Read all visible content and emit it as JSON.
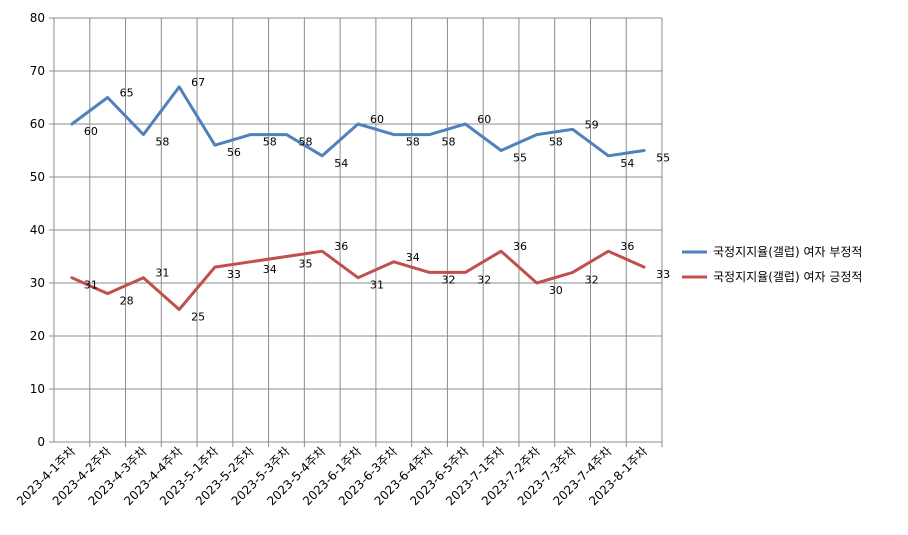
{
  "chart_data": {
    "type": "line",
    "categories": [
      "2023-4-1주차",
      "2023-4-2주차",
      "2023-4-3주차",
      "2023-4-4주차",
      "2023-5-1주차",
      "2023-5-2주차",
      "2023-5-3주차",
      "2023-5-4주차",
      "2023-6-1주차",
      "2023-6-3주차",
      "2023-6-4주차",
      "2023-6-5주차",
      "2023-7-1주차",
      "2023-7-2주차",
      "2023-7-3주차",
      "2023-7-4주차",
      "2023-8-1주차"
    ],
    "series": [
      {
        "name": "국정지지율(갤럽) 여자 부정적",
        "color": "#4F81BD",
        "values": [
          60,
          65,
          58,
          67,
          56,
          58,
          58,
          54,
          60,
          58,
          58,
          60,
          55,
          58,
          59,
          54,
          55
        ]
      },
      {
        "name": "국정지지율(갤럽) 여자 긍정적",
        "color": "#C0504D",
        "values": [
          31,
          28,
          31,
          25,
          33,
          34,
          35,
          36,
          31,
          34,
          32,
          32,
          36,
          30,
          32,
          36,
          33
        ]
      }
    ],
    "yticks": [
      0,
      10,
      20,
      30,
      40,
      50,
      60,
      70,
      80
    ],
    "ylim": [
      0,
      80
    ],
    "grid": true,
    "legend": "right"
  }
}
